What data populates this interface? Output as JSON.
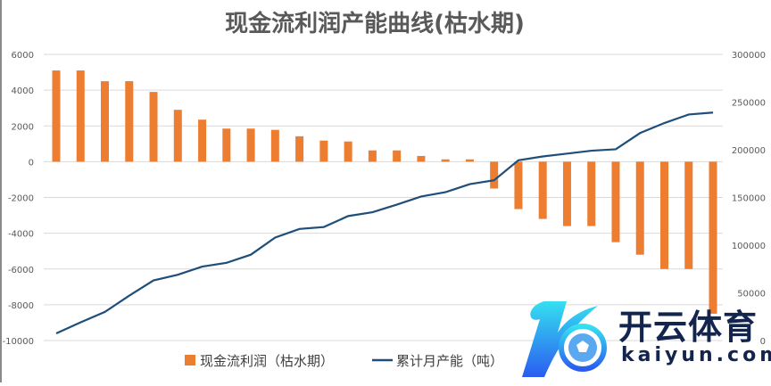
{
  "chart_data": {
    "type": "bar+line",
    "title": "现金流利润产能曲线(枯水期)",
    "categories": [
      "",
      "",
      "",
      "",
      "",
      "",
      "",
      "",
      "",
      "",
      "",
      "",
      "",
      "",
      "",
      "",
      "",
      "",
      "",
      "",
      "",
      "",
      "",
      "",
      "",
      "",
      "",
      ""
    ],
    "left_axis": {
      "range": [
        -10000,
        6000
      ],
      "ticks": [
        6000,
        4000,
        2000,
        0,
        -2000,
        -4000,
        -6000,
        -8000,
        -10000
      ]
    },
    "right_axis": {
      "range": [
        0,
        300000
      ],
      "ticks": [
        300000,
        250000,
        200000,
        150000,
        100000,
        50000,
        0
      ]
    },
    "grid": true,
    "legend_position": "bottom",
    "series": [
      {
        "name": "现金流利润（枯水期）",
        "type": "bar",
        "axis": "left",
        "color": "#ED7D31",
        "values": [
          5100,
          5100,
          4500,
          4500,
          3900,
          2900,
          2350,
          1850,
          1850,
          1780,
          1420,
          1180,
          1130,
          630,
          630,
          320,
          130,
          130,
          -1500,
          -2650,
          -3200,
          -3600,
          -3600,
          -4500,
          -5200,
          -6000,
          -6000,
          -8500
        ]
      },
      {
        "name": "累计月产能（吨）",
        "type": "line",
        "axis": "right",
        "color": "#1F4E79",
        "values": [
          7500,
          19000,
          30000,
          47000,
          63000,
          69000,
          77500,
          81500,
          90000,
          108000,
          117000,
          119000,
          130500,
          134500,
          142500,
          151000,
          155500,
          164000,
          168000,
          189000,
          193000,
          196000,
          199000,
          200500,
          217500,
          228000,
          237000,
          239000
        ]
      }
    ]
  },
  "logo": {
    "text_cn": "开云体育",
    "text_en": "kaiyun.com"
  }
}
